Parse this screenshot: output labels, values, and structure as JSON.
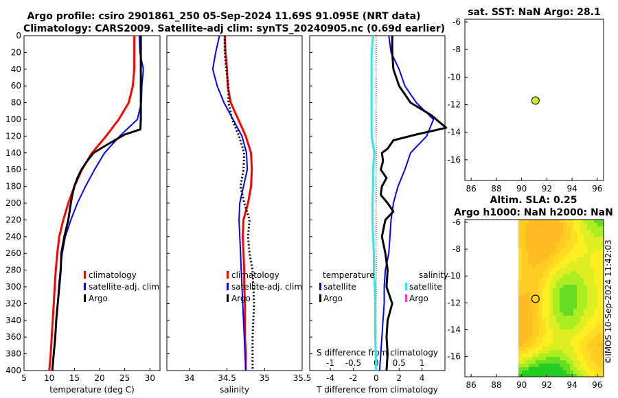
{
  "header": {
    "title_line1": "Argo profile: csiro 2901861_250 05-Sep-2024 11.69S 91.095E (NRT data)",
    "title_line2": "Climatology: CARS2009. Satellite-adj clim: synTS_20240905.nc (0.69d earlier)"
  },
  "side_text": "©IMOS 10-Sep-2024 11:42:03",
  "colors": {
    "climatology": "#ff0000",
    "satellite": "#0000ff",
    "argo": "#000000",
    "sal_satellite": "#33e6e6",
    "sal_argo": "#ff33cc"
  },
  "chart_data": [
    {
      "type": "line",
      "panel": "temperature",
      "xlabel": "temperature (deg C)",
      "ylabel": "",
      "xlim": [
        5,
        32
      ],
      "ylim": [
        400,
        0
      ],
      "xticks": [
        5,
        10,
        15,
        20,
        25,
        30
      ],
      "yticks": [
        0,
        20,
        40,
        60,
        80,
        100,
        120,
        140,
        160,
        180,
        200,
        220,
        240,
        260,
        280,
        300,
        320,
        340,
        360,
        380,
        400
      ],
      "legend": [
        "climatology",
        "satellite-adj. clim",
        "Argo"
      ],
      "legend_position": "lower-right",
      "series": [
        {
          "name": "climatology",
          "color": "#ff0000",
          "width": 3,
          "points": [
            [
              26.9,
              0
            ],
            [
              26.9,
              20
            ],
            [
              26.9,
              40
            ],
            [
              26.6,
              60
            ],
            [
              25.8,
              80
            ],
            [
              23.8,
              100
            ],
            [
              21.3,
              120
            ],
            [
              18.5,
              140
            ],
            [
              16.5,
              160
            ],
            [
              15.0,
              180
            ],
            [
              13.8,
              200
            ],
            [
              12.8,
              220
            ],
            [
              12.0,
              240
            ],
            [
              11.6,
              260
            ],
            [
              11.3,
              280
            ],
            [
              11.1,
              300
            ],
            [
              10.9,
              320
            ],
            [
              10.7,
              340
            ],
            [
              10.5,
              360
            ],
            [
              10.3,
              380
            ],
            [
              10.0,
              400
            ]
          ]
        },
        {
          "name": "satellite-adj. clim",
          "color": "#0000ff",
          "width": 2,
          "points": [
            [
              27.9,
              0
            ],
            [
              28.0,
              20
            ],
            [
              28.7,
              40
            ],
            [
              28.4,
              60
            ],
            [
              28.3,
              80
            ],
            [
              27.5,
              100
            ],
            [
              24.0,
              120
            ],
            [
              21.0,
              140
            ],
            [
              19.0,
              160
            ],
            [
              17.2,
              180
            ],
            [
              15.6,
              200
            ],
            [
              14.3,
              220
            ],
            [
              13.2,
              240
            ],
            [
              12.6,
              260
            ],
            [
              12.2,
              280
            ],
            [
              11.9,
              300
            ],
            [
              11.7,
              320
            ],
            [
              11.4,
              340
            ],
            [
              11.2,
              360
            ],
            [
              10.9,
              380
            ],
            [
              10.6,
              400
            ]
          ]
        },
        {
          "name": "Argo",
          "color": "#000000",
          "width": 3,
          "points": [
            [
              28.2,
              0
            ],
            [
              28.2,
              20
            ],
            [
              28.2,
              40
            ],
            [
              28.2,
              60
            ],
            [
              28.2,
              80
            ],
            [
              28.2,
              100
            ],
            [
              28.1,
              112
            ],
            [
              25.0,
              118
            ],
            [
              21.0,
              132
            ],
            [
              18.8,
              140
            ],
            [
              17.5,
              150
            ],
            [
              16.4,
              160
            ],
            [
              15.6,
              170
            ],
            [
              15.0,
              180
            ],
            [
              14.6,
              190
            ],
            [
              14.3,
              200
            ],
            [
              13.8,
              220
            ],
            [
              13.0,
              240
            ],
            [
              12.4,
              260
            ],
            [
              12.3,
              280
            ],
            [
              12.0,
              300
            ],
            [
              11.7,
              320
            ],
            [
              11.4,
              340
            ],
            [
              11.2,
              360
            ],
            [
              10.9,
              380
            ],
            [
              10.6,
              400
            ]
          ]
        }
      ]
    },
    {
      "type": "line",
      "panel": "salinity",
      "xlabel": "salinity",
      "ylabel": "",
      "xlim": [
        33.7,
        35.5
      ],
      "ylim": [
        400,
        0
      ],
      "xticks": [
        34,
        34.5,
        35,
        35.5
      ],
      "legend": [
        "climatology",
        "satellite-adj. clim",
        "Argo"
      ],
      "legend_position": "lower-right",
      "series": [
        {
          "name": "climatology",
          "color": "#ff0000",
          "width": 3,
          "points": [
            [
              34.47,
              0
            ],
            [
              34.48,
              20
            ],
            [
              34.5,
              40
            ],
            [
              34.51,
              60
            ],
            [
              34.55,
              80
            ],
            [
              34.65,
              100
            ],
            [
              34.75,
              120
            ],
            [
              34.82,
              140
            ],
            [
              34.83,
              160
            ],
            [
              34.82,
              180
            ],
            [
              34.78,
              200
            ],
            [
              34.72,
              220
            ],
            [
              34.71,
              240
            ],
            [
              34.72,
              260
            ],
            [
              34.73,
              280
            ],
            [
              34.73,
              300
            ],
            [
              34.74,
              320
            ],
            [
              34.74,
              340
            ],
            [
              34.74,
              360
            ],
            [
              34.75,
              380
            ],
            [
              34.75,
              400
            ]
          ]
        },
        {
          "name": "satellite-adj. clim",
          "color": "#0000ff",
          "width": 2,
          "points": [
            [
              34.4,
              0
            ],
            [
              34.35,
              20
            ],
            [
              34.31,
              40
            ],
            [
              34.37,
              60
            ],
            [
              34.46,
              80
            ],
            [
              34.58,
              100
            ],
            [
              34.7,
              120
            ],
            [
              34.76,
              140
            ],
            [
              34.77,
              160
            ],
            [
              34.72,
              180
            ],
            [
              34.67,
              200
            ],
            [
              34.66,
              220
            ],
            [
              34.67,
              240
            ],
            [
              34.68,
              260
            ],
            [
              34.69,
              280
            ],
            [
              34.7,
              300
            ],
            [
              34.71,
              320
            ],
            [
              34.72,
              340
            ],
            [
              34.73,
              360
            ],
            [
              34.74,
              380
            ],
            [
              34.75,
              400
            ]
          ]
        },
        {
          "name": "Argo",
          "color": "#000000",
          "width": 3,
          "dash": "2,3",
          "points": [
            [
              34.47,
              0
            ],
            [
              34.47,
              20
            ],
            [
              34.49,
              40
            ],
            [
              34.52,
              60
            ],
            [
              34.52,
              80
            ],
            [
              34.57,
              100
            ],
            [
              34.66,
              120
            ],
            [
              34.73,
              140
            ],
            [
              34.72,
              160
            ],
            [
              34.68,
              180
            ],
            [
              34.73,
              200
            ],
            [
              34.8,
              220
            ],
            [
              34.78,
              240
            ],
            [
              34.8,
              260
            ],
            [
              34.84,
              280
            ],
            [
              34.85,
              300
            ],
            [
              34.86,
              320
            ],
            [
              34.85,
              340
            ],
            [
              34.84,
              360
            ],
            [
              34.84,
              380
            ],
            [
              34.84,
              400
            ]
          ]
        }
      ]
    },
    {
      "type": "line",
      "panel": "difference",
      "xlabel": "T difference from climatology",
      "x2label": "S difference from climatology",
      "xlim": [
        -5.8,
        6
      ],
      "x2lim": [
        -1.45,
        1.5
      ],
      "ylim": [
        400,
        0
      ],
      "xticks": [
        -4,
        -2,
        0,
        2,
        4
      ],
      "x2ticks": [
        -1,
        -0.5,
        0,
        0.5,
        1
      ],
      "legend_titles": [
        "temperature",
        "salinity"
      ],
      "legend": [
        "satellite",
        "Argo",
        "satellite",
        "Argo"
      ],
      "legend_position": "lower-right",
      "series": [
        {
          "name": "satellite",
          "color": "#0000ff",
          "width": 2,
          "points": [
            [
              1.1,
              0
            ],
            [
              1.3,
              20
            ],
            [
              2.0,
              40
            ],
            [
              2.5,
              60
            ],
            [
              3.5,
              80
            ],
            [
              5.0,
              100
            ],
            [
              4.4,
              120
            ],
            [
              3.0,
              140
            ],
            [
              2.5,
              160
            ],
            [
              1.9,
              180
            ],
            [
              1.5,
              200
            ],
            [
              1.3,
              220
            ],
            [
              1.2,
              240
            ],
            [
              1.1,
              260
            ],
            [
              0.8,
              280
            ],
            [
              0.7,
              300
            ],
            [
              0.7,
              320
            ],
            [
              0.6,
              340
            ],
            [
              0.5,
              360
            ],
            [
              0.4,
              380
            ],
            [
              0.3,
              400
            ]
          ]
        },
        {
          "name": "Argo",
          "color": "#000000",
          "width": 3,
          "points": [
            [
              1.4,
              0
            ],
            [
              1.4,
              20
            ],
            [
              1.5,
              40
            ],
            [
              2.0,
              60
            ],
            [
              3.0,
              80
            ],
            [
              4.8,
              95
            ],
            [
              6.1,
              110
            ],
            [
              3.5,
              118
            ],
            [
              1.5,
              125
            ],
            [
              1.0,
              135
            ],
            [
              0.5,
              140
            ],
            [
              0.6,
              150
            ],
            [
              0.4,
              160
            ],
            [
              0.9,
              170
            ],
            [
              0.5,
              180
            ],
            [
              0.4,
              190
            ],
            [
              1.0,
              200
            ],
            [
              1.5,
              210
            ],
            [
              0.8,
              220
            ],
            [
              0.5,
              240
            ],
            [
              0.8,
              260
            ],
            [
              1.0,
              280
            ],
            [
              0.9,
              300
            ],
            [
              1.4,
              320
            ],
            [
              1.0,
              340
            ],
            [
              0.9,
              360
            ],
            [
              1.0,
              380
            ],
            [
              0.9,
              400
            ]
          ]
        },
        {
          "name": "salinity satellite",
          "color": "#33e6e6",
          "width": 3,
          "axis": "x2",
          "points": [
            [
              -0.07,
              0
            ],
            [
              -0.1,
              20
            ],
            [
              -0.1,
              40
            ],
            [
              -0.1,
              60
            ],
            [
              -0.1,
              80
            ],
            [
              -0.1,
              100
            ],
            [
              -0.1,
              120
            ],
            [
              -0.04,
              140
            ],
            [
              -0.07,
              160
            ],
            [
              -0.07,
              180
            ],
            [
              -0.08,
              200
            ],
            [
              -0.08,
              220
            ],
            [
              -0.07,
              240
            ],
            [
              -0.05,
              260
            ],
            [
              -0.05,
              280
            ],
            [
              -0.03,
              300
            ],
            [
              -0.02,
              320
            ],
            [
              -0.02,
              340
            ],
            [
              -0.02,
              360
            ],
            [
              -0.01,
              380
            ],
            [
              0.0,
              400
            ]
          ]
        }
      ]
    },
    {
      "type": "scatter",
      "panel": "sst_map",
      "title": "sat. SST: NaN Argo: 28.1",
      "xlim": [
        85.5,
        96.5
      ],
      "ylim": [
        -17.5,
        -5.8
      ],
      "xticks": [
        86,
        88,
        90,
        92,
        94,
        96
      ],
      "yticks": [
        -6,
        -8,
        -10,
        -12,
        -14,
        -16
      ],
      "points": [
        {
          "x": 91.1,
          "y": -11.7,
          "color": "#ccee22"
        }
      ]
    },
    {
      "type": "heatmap",
      "panel": "sla_map",
      "title_line1": "Altim. SLA: 0.25",
      "title_line2": "Argo h1000: NaN h2000: NaN",
      "xlim": [
        85.5,
        96.5
      ],
      "ylim": [
        -17.5,
        -5.8
      ],
      "data_xlim": [
        90,
        96.5
      ],
      "xticks": [
        86,
        88,
        90,
        92,
        94,
        96
      ],
      "yticks": [
        -6,
        -8,
        -10,
        -12,
        -14,
        -16
      ],
      "points": [
        {
          "x": 91.1,
          "y": -11.7
        }
      ]
    }
  ]
}
